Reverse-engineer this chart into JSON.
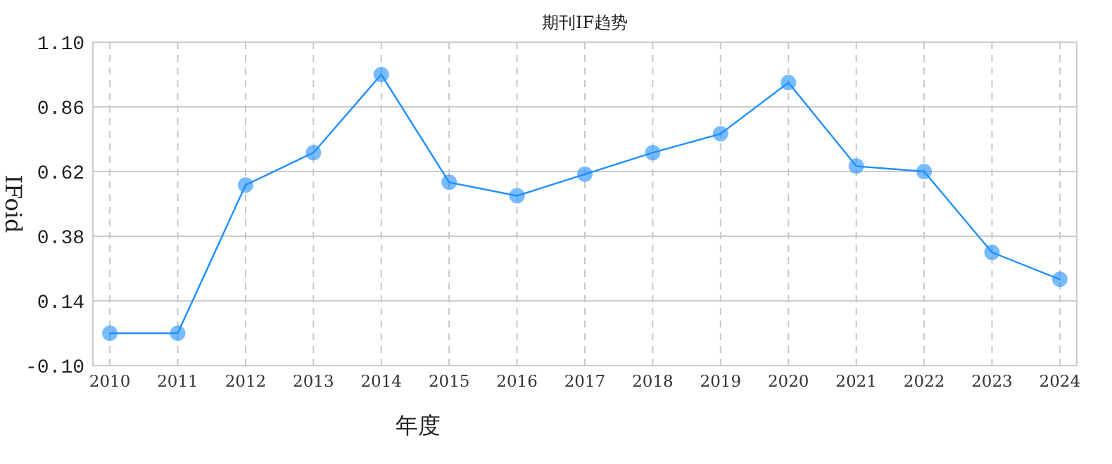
{
  "chart_data": {
    "type": "line",
    "title": "期刊IF趋势",
    "xlabel": "年度",
    "ylabel": "IFoid",
    "categories": [
      "2010",
      "2011",
      "2012",
      "2013",
      "2014",
      "2015",
      "2016",
      "2017",
      "2018",
      "2019",
      "2020",
      "2021",
      "2022",
      "2023",
      "2024"
    ],
    "series": [
      {
        "color": "#1e90ff",
        "values": [
          0.02,
          0.02,
          0.57,
          0.69,
          0.98,
          0.58,
          0.53,
          0.61,
          0.69,
          0.76,
          0.95,
          0.64,
          0.62,
          0.32,
          0.22
        ]
      }
    ],
    "ylim": [
      -0.1,
      1.1
    ],
    "yticks": [
      {
        "value": -0.1,
        "label": "-0.10"
      },
      {
        "value": 0.14,
        "label": "0.14"
      },
      {
        "value": 0.38,
        "label": "0.38"
      },
      {
        "value": 0.62,
        "label": "0.62"
      },
      {
        "value": 0.86,
        "label": "0.86"
      },
      {
        "value": 1.1,
        "label": "1.10"
      }
    ],
    "grid": true,
    "marker": "circle",
    "line_style": "solid"
  }
}
